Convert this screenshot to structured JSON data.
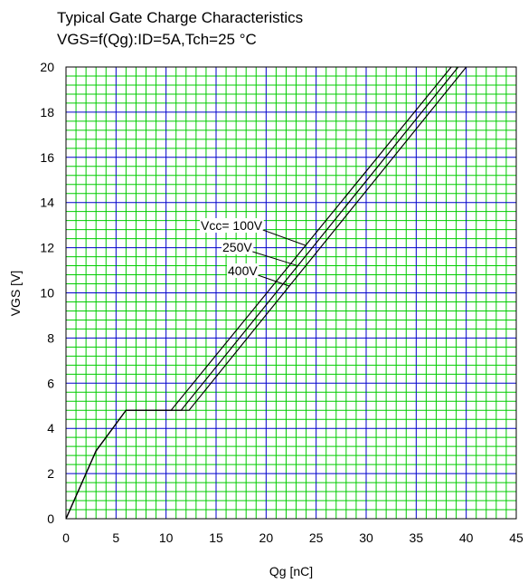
{
  "chart_data": {
    "type": "line",
    "title": "Typical Gate Charge Characteristics",
    "subtitle": "VGS=f(Qg):ID=5A,Tch=25 °C",
    "xlabel": "Qg [nC]",
    "ylabel": "VGS [V]",
    "xlim": [
      0,
      45
    ],
    "ylim": [
      0,
      20
    ],
    "xticks": [
      0,
      5,
      10,
      15,
      20,
      25,
      30,
      35,
      40,
      45
    ],
    "yticks": [
      0,
      2,
      4,
      6,
      8,
      10,
      12,
      14,
      16,
      18,
      20
    ],
    "grid": true,
    "series": [
      {
        "name": "Vcc= 100V",
        "x": [
          0,
          3,
          6,
          10.5,
          38.5
        ],
        "y": [
          0,
          3.0,
          4.8,
          4.8,
          20
        ]
      },
      {
        "name": "250V",
        "x": [
          0,
          3,
          6,
          11.5,
          39.2
        ],
        "y": [
          0,
          3.0,
          4.8,
          4.8,
          20
        ]
      },
      {
        "name": "400V",
        "x": [
          0,
          3,
          6,
          12.3,
          40.0
        ],
        "y": [
          0,
          3.0,
          4.8,
          4.8,
          20
        ]
      }
    ],
    "annotations": [
      {
        "text": "Vcc= 100V",
        "series": 0,
        "at_y": 12.1
      },
      {
        "text": "250V",
        "series": 1,
        "at_y": 11.2
      },
      {
        "text": "400V",
        "series": 2,
        "at_y": 10.3
      }
    ],
    "colors": {
      "major_grid": "#0000cc",
      "minor_grid": "#00cc00",
      "line": "#000000"
    }
  }
}
